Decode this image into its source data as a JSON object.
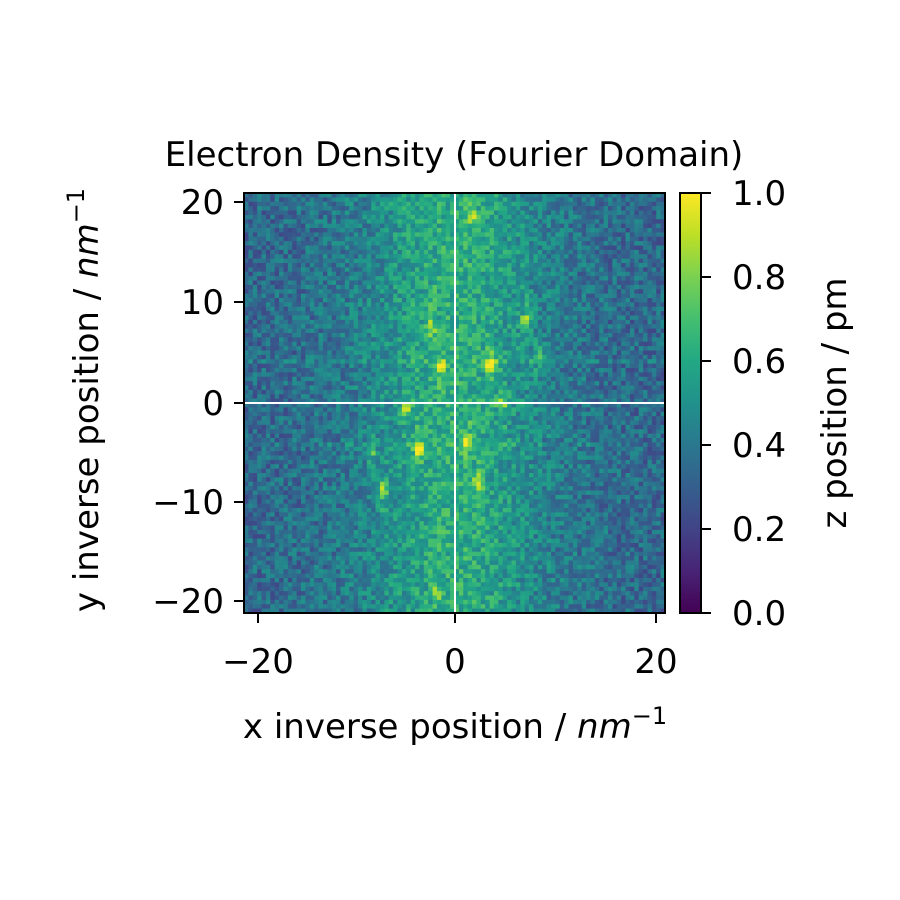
{
  "chart_data": {
    "type": "heatmap",
    "title": "Electron Density (Fourier Domain)",
    "xlabel": "x inverse position / ",
    "xlabel_unit": "nm",
    "xlabel_exp": "−1",
    "ylabel": "y inverse position / ",
    "ylabel_unit": "nm",
    "ylabel_exp": "−1",
    "xlim": [
      -21.2,
      21.2
    ],
    "ylim": [
      -21.2,
      21.2
    ],
    "x_ticks": [
      -20,
      0,
      20
    ],
    "x_tick_labels": [
      "−20",
      "0",
      "20"
    ],
    "y_ticks": [
      -20,
      -10,
      0,
      10,
      20
    ],
    "y_tick_labels": [
      "−20",
      "−10",
      "0",
      "10",
      "20"
    ],
    "colormap": "viridis",
    "colorbar": {
      "label": "z position / pm",
      "range": [
        0.0,
        1.0
      ],
      "ticks": [
        0.0,
        0.2,
        0.4,
        0.6,
        0.8,
        1.0
      ],
      "tick_labels": [
        "0.0",
        "0.2",
        "0.4",
        "0.6",
        "0.8",
        "1.0"
      ]
    },
    "crosshair": {
      "x": 0,
      "y": 0,
      "color": "#ffffff"
    },
    "grid": false,
    "background_level": 0.4,
    "bright_spots": [
      {
        "x": 3.6,
        "y": 4.0,
        "value": 0.85
      },
      {
        "x": -3.6,
        "y": -4.6,
        "value": 0.82
      },
      {
        "x": 7.2,
        "y": 8.2,
        "value": 0.78
      },
      {
        "x": -7.2,
        "y": -8.8,
        "value": 0.76
      },
      {
        "x": -1.3,
        "y": 3.6,
        "value": 0.74
      },
      {
        "x": 1.3,
        "y": -4.0,
        "value": 0.72
      },
      {
        "x": -4.8,
        "y": -0.6,
        "value": 0.7
      },
      {
        "x": 4.8,
        "y": 0.0,
        "value": 0.7
      },
      {
        "x": -2.4,
        "y": 7.6,
        "value": 0.66
      },
      {
        "x": 2.4,
        "y": -8.0,
        "value": 0.66
      },
      {
        "x": 8.4,
        "y": 4.6,
        "value": 0.62
      },
      {
        "x": -8.4,
        "y": -5.0,
        "value": 0.62
      },
      {
        "x": 1.8,
        "y": 18.8,
        "value": 0.64
      },
      {
        "x": -1.8,
        "y": -19.2,
        "value": 0.64
      }
    ]
  }
}
